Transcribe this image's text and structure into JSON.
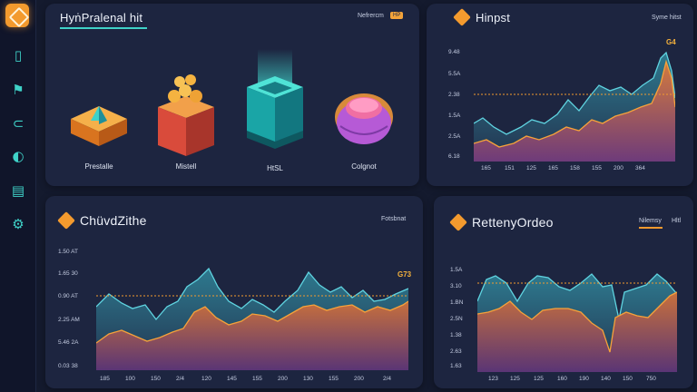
{
  "sidebar": {
    "logo": "cube-logo-icon",
    "items": [
      {
        "icon": "document-icon",
        "glyph": "▯"
      },
      {
        "icon": "flag-icon",
        "glyph": "⚑"
      },
      {
        "icon": "link-icon",
        "glyph": "⊂"
      },
      {
        "icon": "globe-icon",
        "glyph": "◐"
      },
      {
        "icon": "file-icon",
        "glyph": "▤"
      },
      {
        "icon": "settings-icon",
        "glyph": "⚙"
      }
    ]
  },
  "top_left": {
    "title": "HyṅPralenal hit",
    "tag": "Nefrercm",
    "badge": "HP",
    "products": [
      {
        "label": "Prestalle",
        "icon": "pyramid-box-icon"
      },
      {
        "label": "Mistell",
        "icon": "coin-box-icon"
      },
      {
        "label": "HtSL",
        "icon": "glowing-cube-icon"
      },
      {
        "label": "Colgnot",
        "icon": "dome-icon"
      }
    ]
  },
  "top_right": {
    "title": "Hinpst",
    "tag": "Syme hitst",
    "peak": "G4",
    "yticks": [
      "9.48",
      "5.5A",
      "2.38",
      "1.5A",
      "2.5A",
      "6.18"
    ],
    "xticks": [
      "165",
      "151",
      "125",
      "165",
      "158",
      "155",
      "200",
      "364"
    ]
  },
  "bottom_left": {
    "title": "ChüvdZithe",
    "tag": "Fotsbnat",
    "peak": "G73",
    "yticks": [
      "1.50 AT",
      "1.65 30",
      "0.90 AT",
      "2.25 AM",
      "5.46 2A",
      "0.03 38"
    ],
    "xticks": [
      "185",
      "100",
      "150",
      "2/4",
      "120",
      "145",
      "155",
      "200",
      "130",
      "155",
      "200",
      "2/4"
    ]
  },
  "bottom_right": {
    "title": "RettenyOrdeo",
    "tag": "Nilemsy",
    "tag2": "Hltl",
    "yticks": [
      "1.5A",
      "3.10",
      "1.BN",
      "2.5N",
      "1.38",
      "2.63",
      "1.63"
    ],
    "xticks": [
      "123",
      "125",
      "125",
      "160",
      "190",
      "140",
      "150",
      "750"
    ]
  },
  "colors": {
    "accent_orange": "#f39a2e",
    "accent_teal": "#3fd2c8",
    "panel": "#1d2540",
    "background": "#141a2e"
  }
}
